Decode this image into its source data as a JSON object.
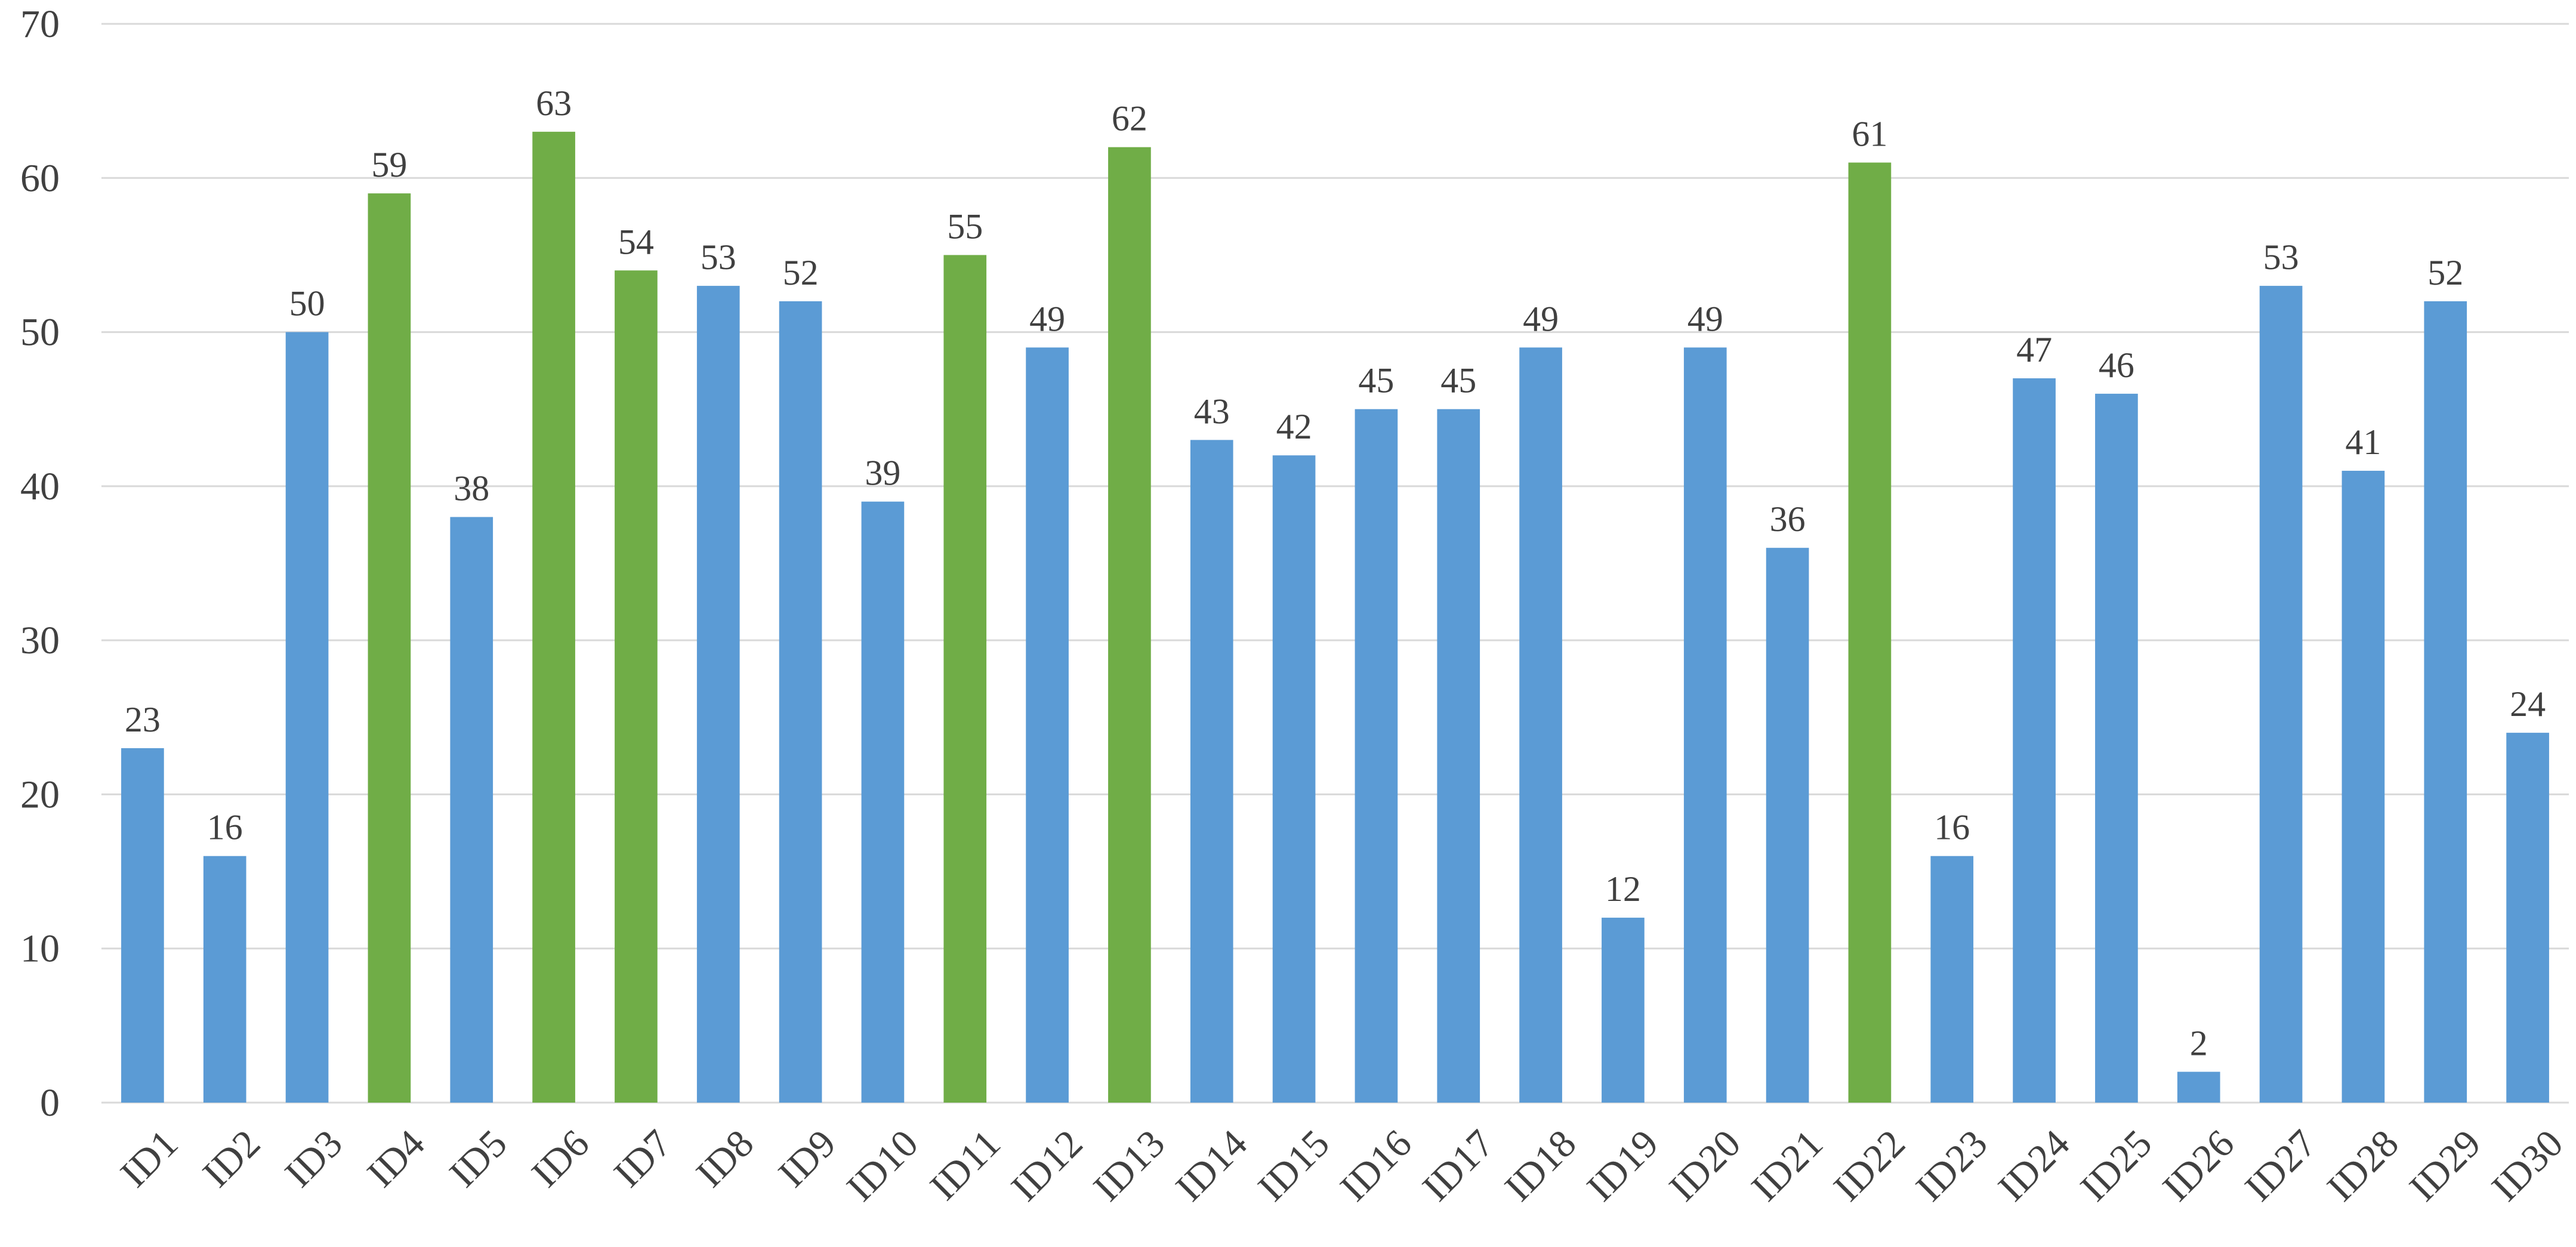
{
  "chart_data": {
    "type": "bar",
    "title": "",
    "xlabel": "",
    "ylabel": "",
    "ylim": [
      0,
      70
    ],
    "yticks": [
      0,
      10,
      20,
      30,
      40,
      50,
      60,
      70
    ],
    "grid": true,
    "legend": "none",
    "colors": {
      "default": "#5b9bd5",
      "highlight": "#70ad47",
      "grid": "#d9d9d9",
      "text": "#404040"
    },
    "categories": [
      "ID1",
      "ID2",
      "ID3",
      "ID4",
      "ID5",
      "ID6",
      "ID7",
      "ID8",
      "ID9",
      "ID10",
      "ID11",
      "ID12",
      "ID13",
      "ID14",
      "ID15",
      "ID16",
      "ID17",
      "ID18",
      "ID19",
      "ID20",
      "ID21",
      "ID22",
      "ID23",
      "ID24",
      "ID25",
      "ID26",
      "ID27",
      "ID28",
      "ID29",
      "ID30"
    ],
    "values": [
      23,
      16,
      50,
      59,
      38,
      63,
      54,
      53,
      52,
      39,
      55,
      49,
      62,
      43,
      42,
      45,
      45,
      49,
      12,
      49,
      36,
      61,
      16,
      47,
      46,
      2,
      53,
      41,
      52,
      24
    ],
    "highlighted": [
      "ID4",
      "ID6",
      "ID7",
      "ID11",
      "ID13",
      "ID22"
    ]
  }
}
